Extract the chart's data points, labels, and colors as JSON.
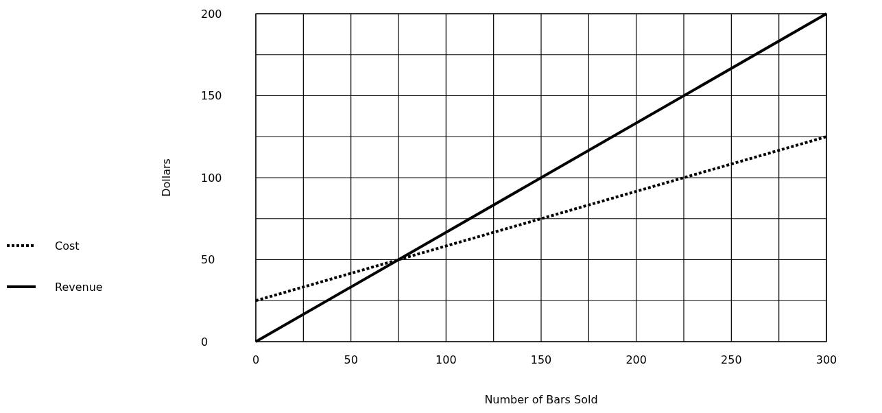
{
  "chart_data": {
    "type": "line",
    "xlabel": "Number of Bars Sold",
    "ylabel": "Dollars",
    "x": [
      0,
      300
    ],
    "series": [
      {
        "name": "Cost",
        "color": "#000000",
        "values": [
          25,
          125
        ],
        "line_style": "dotted"
      },
      {
        "name": "Revenue",
        "color": "#000000",
        "values": [
          0,
          200
        ],
        "line_style": "solid"
      }
    ],
    "xlim": [
      0,
      300
    ],
    "ylim": [
      0,
      200
    ],
    "xticks": [
      0,
      {
        "value": 25,
        "label": null
      },
      50,
      {
        "value": 75,
        "label": null
      },
      100,
      {
        "value": 125,
        "label": null
      },
      150,
      {
        "value": 175,
        "label": null
      },
      200,
      {
        "value": 225,
        "label": null
      },
      250,
      {
        "value": 275,
        "label": null
      },
      300
    ],
    "yticks": [
      0,
      {
        "value": 25,
        "label": null
      },
      50,
      {
        "value": 75,
        "label": null
      },
      100,
      {
        "value": 125,
        "label": null
      },
      150,
      {
        "value": 175,
        "label": null
      },
      200
    ],
    "grid": true,
    "legend": "left"
  }
}
